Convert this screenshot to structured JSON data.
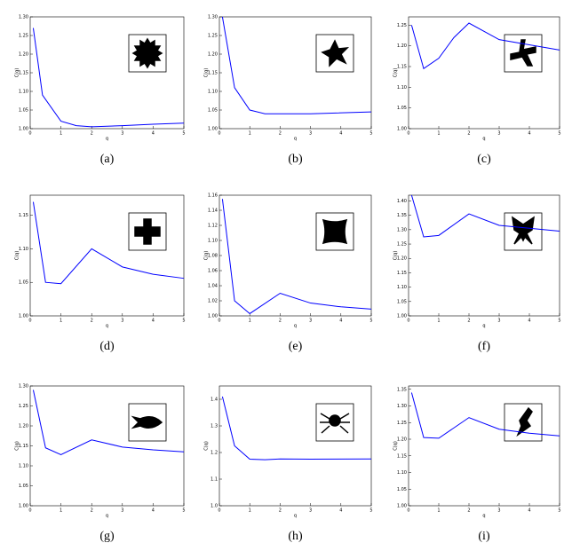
{
  "chart_data": [
    {
      "type": "line",
      "caption": "(a)",
      "xlabel": "q",
      "ylabel": "C(q)",
      "color": "#0000ff",
      "x": [
        0.1,
        0.4,
        1,
        1.5,
        2,
        3,
        4,
        5
      ],
      "values": [
        1.27,
        1.09,
        1.02,
        1.008,
        1.005,
        1.008,
        1.012,
        1.015
      ],
      "xlim": [
        0,
        5
      ],
      "ylim": [
        1.0,
        1.3
      ],
      "xticks": [
        0,
        1,
        2,
        3,
        4,
        5
      ],
      "yticks": [
        {
          "value": 1.0,
          "label": "1.00"
        },
        {
          "value": 1.05,
          "label": "1.05"
        },
        {
          "value": 1.1,
          "label": "1.10"
        },
        {
          "value": 1.15,
          "label": "1.15"
        },
        {
          "value": 1.2,
          "label": "1.20"
        },
        {
          "value": 1.25,
          "label": "1.25"
        },
        {
          "value": 1.3,
          "label": "1.30"
        }
      ]
    },
    {
      "type": "line",
      "caption": "(b)",
      "xlabel": "q",
      "ylabel": "C(q)",
      "color": "#0000ff",
      "x": [
        0.1,
        0.5,
        1,
        1.5,
        3,
        5
      ],
      "values": [
        1.3,
        1.11,
        1.05,
        1.04,
        1.04,
        1.045
      ],
      "xlim": [
        0,
        5
      ],
      "ylim": [
        1.0,
        1.3
      ],
      "xticks": [
        0,
        1,
        2,
        3,
        4,
        5
      ],
      "yticks": [
        {
          "value": 1.0,
          "label": "1.00"
        },
        {
          "value": 1.05,
          "label": "1.05"
        },
        {
          "value": 1.1,
          "label": "1.10"
        },
        {
          "value": 1.15,
          "label": "1.15"
        },
        {
          "value": 1.2,
          "label": "1.20"
        },
        {
          "value": 1.25,
          "label": "1.25"
        },
        {
          "value": 1.3,
          "label": "1.30"
        }
      ]
    },
    {
      "type": "line",
      "caption": "(c)",
      "xlabel": "q",
      "ylabel": "C(q)",
      "color": "#0000ff",
      "x": [
        0.1,
        0.5,
        1,
        1.5,
        2,
        3,
        5
      ],
      "values": [
        1.25,
        1.145,
        1.17,
        1.22,
        1.255,
        1.215,
        1.19
      ],
      "xlim": [
        0,
        5
      ],
      "ylim": [
        1.0,
        1.27
      ],
      "xticks": [
        0,
        1,
        2,
        3,
        4,
        5
      ],
      "yticks": [
        {
          "value": 1.0,
          "label": "1.00"
        },
        {
          "value": 1.05,
          "label": "1.05"
        },
        {
          "value": 1.1,
          "label": "1.10"
        },
        {
          "value": 1.15,
          "label": "1.15"
        },
        {
          "value": 1.2,
          "label": "1.20"
        },
        {
          "value": 1.25,
          "label": "1.25"
        }
      ]
    },
    {
      "type": "line",
      "caption": "(d)",
      "xlabel": "q",
      "ylabel": "C(q)",
      "color": "#0000ff",
      "x": [
        0.1,
        0.5,
        1,
        2,
        3,
        4,
        5
      ],
      "values": [
        1.17,
        1.05,
        1.048,
        1.1,
        1.073,
        1.062,
        1.056
      ],
      "xlim": [
        0,
        5
      ],
      "ylim": [
        1.0,
        1.18
      ],
      "xticks": [
        0,
        1,
        2,
        3,
        4,
        5
      ],
      "yticks": [
        {
          "value": 1.0,
          "label": "1.00"
        },
        {
          "value": 1.05,
          "label": "1.05"
        },
        {
          "value": 1.1,
          "label": "1.10"
        },
        {
          "value": 1.15,
          "label": "1.15"
        }
      ]
    },
    {
      "type": "line",
      "caption": "(e)",
      "xlabel": "q",
      "ylabel": "C(q)",
      "color": "#0000ff",
      "x": [
        0.1,
        0.5,
        1,
        2,
        3,
        4,
        5
      ],
      "values": [
        1.155,
        1.02,
        1.003,
        1.03,
        1.017,
        1.012,
        1.009
      ],
      "xlim": [
        0,
        5
      ],
      "ylim": [
        1.0,
        1.16
      ],
      "xticks": [
        0,
        1,
        2,
        3,
        4,
        5
      ],
      "yticks": [
        {
          "value": 1.0,
          "label": "1.00"
        },
        {
          "value": 1.02,
          "label": "1.02"
        },
        {
          "value": 1.04,
          "label": "1.04"
        },
        {
          "value": 1.06,
          "label": "1.06"
        },
        {
          "value": 1.08,
          "label": "1.08"
        },
        {
          "value": 1.1,
          "label": "1.10"
        },
        {
          "value": 1.12,
          "label": "1.12"
        },
        {
          "value": 1.14,
          "label": "1.14"
        },
        {
          "value": 1.16,
          "label": "1.16"
        }
      ]
    },
    {
      "type": "line",
      "caption": "(f)",
      "xlabel": "q",
      "ylabel": "C(q)",
      "color": "#0000ff",
      "x": [
        0.1,
        0.5,
        1,
        2,
        3,
        5
      ],
      "values": [
        1.42,
        1.275,
        1.28,
        1.355,
        1.315,
        1.295
      ],
      "xlim": [
        0,
        5
      ],
      "ylim": [
        1.0,
        1.42
      ],
      "xticks": [
        0,
        1,
        2,
        3,
        4,
        5
      ],
      "yticks": [
        {
          "value": 1.0,
          "label": "1.00"
        },
        {
          "value": 1.05,
          "label": "1.05"
        },
        {
          "value": 1.1,
          "label": "1.10"
        },
        {
          "value": 1.15,
          "label": "1.15"
        },
        {
          "value": 1.2,
          "label": "1.20"
        },
        {
          "value": 1.25,
          "label": "1.25"
        },
        {
          "value": 1.3,
          "label": "1.30"
        },
        {
          "value": 1.35,
          "label": "1.35"
        },
        {
          "value": 1.4,
          "label": "1.40"
        }
      ]
    },
    {
      "type": "line",
      "caption": "(g)",
      "xlabel": "q",
      "ylabel": "C(q)",
      "color": "#0000ff",
      "x": [
        0.1,
        0.5,
        1,
        2,
        3,
        4,
        5
      ],
      "values": [
        1.29,
        1.145,
        1.128,
        1.165,
        1.147,
        1.14,
        1.135
      ],
      "xlim": [
        0,
        5
      ],
      "ylim": [
        1.0,
        1.3
      ],
      "xticks": [
        0,
        1,
        2,
        3,
        4,
        5
      ],
      "yticks": [
        {
          "value": 1.0,
          "label": "1.00"
        },
        {
          "value": 1.05,
          "label": "1.05"
        },
        {
          "value": 1.1,
          "label": "1.10"
        },
        {
          "value": 1.15,
          "label": "1.15"
        },
        {
          "value": 1.2,
          "label": "1.20"
        },
        {
          "value": 1.25,
          "label": "1.25"
        },
        {
          "value": 1.3,
          "label": "1.30"
        }
      ]
    },
    {
      "type": "line",
      "caption": "(h)",
      "xlabel": "q",
      "ylabel": "C(q)",
      "color": "#0000ff",
      "x": [
        0.1,
        0.5,
        1,
        1.5,
        2,
        3,
        5
      ],
      "values": [
        1.41,
        1.225,
        1.175,
        1.173,
        1.176,
        1.175,
        1.176
      ],
      "xlim": [
        0,
        5
      ],
      "ylim": [
        1.0,
        1.45
      ],
      "xticks": [
        0,
        1,
        2,
        3,
        4,
        5
      ],
      "yticks": [
        {
          "value": 1.0,
          "label": "1.0"
        },
        {
          "value": 1.1,
          "label": "1.1"
        },
        {
          "value": 1.2,
          "label": "1.2"
        },
        {
          "value": 1.3,
          "label": "1.3"
        },
        {
          "value": 1.4,
          "label": "1.4"
        }
      ]
    },
    {
      "type": "line",
      "caption": "(i)",
      "xlabel": "q",
      "ylabel": "C(q)",
      "color": "#0000ff",
      "x": [
        0.1,
        0.5,
        1,
        2,
        3,
        4,
        5
      ],
      "values": [
        1.34,
        1.205,
        1.203,
        1.265,
        1.23,
        1.218,
        1.21
      ],
      "xlim": [
        0,
        5
      ],
      "ylim": [
        1.0,
        1.36
      ],
      "xticks": [
        0,
        1,
        2,
        3,
        4,
        5
      ],
      "yticks": [
        {
          "value": 1.0,
          "label": "1.00"
        },
        {
          "value": 1.05,
          "label": "1.05"
        },
        {
          "value": 1.1,
          "label": "1.10"
        },
        {
          "value": 1.15,
          "label": "1.15"
        },
        {
          "value": 1.2,
          "label": "1.20"
        },
        {
          "value": 1.25,
          "label": "1.25"
        },
        {
          "value": 1.3,
          "label": "1.30"
        },
        {
          "value": 1.35,
          "label": "1.35"
        }
      ]
    }
  ]
}
